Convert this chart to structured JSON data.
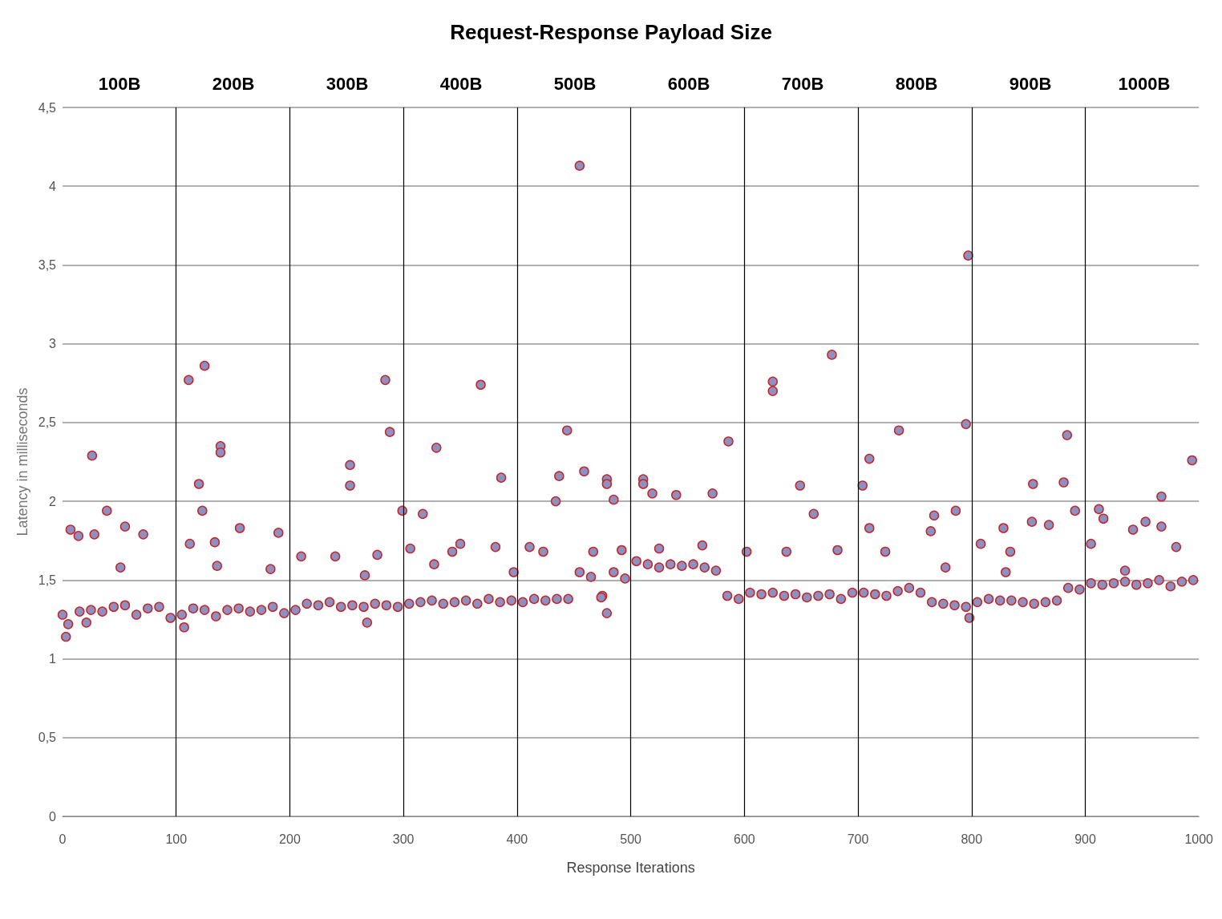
{
  "chart_data": {
    "type": "scatter",
    "title": "Request-Response Payload Size",
    "xlabel": "Response Iterations",
    "ylabel": "Latency in milliseconds",
    "x": [
      5,
      15,
      25,
      35,
      45,
      55,
      65,
      75,
      85,
      95,
      105,
      115,
      125,
      135,
      145,
      155,
      165,
      175,
      185,
      195,
      205,
      215,
      225,
      235,
      245,
      255,
      265,
      275,
      285,
      295,
      305,
      315,
      325,
      335,
      345,
      355,
      365,
      375,
      385,
      395,
      405,
      415,
      425,
      435,
      445,
      455,
      465,
      475,
      485,
      495,
      505,
      515,
      525,
      535,
      545,
      555,
      565,
      575,
      585,
      595,
      605,
      615,
      625,
      635,
      645,
      655,
      665,
      675,
      685,
      695,
      705,
      715,
      725,
      735,
      745,
      755,
      765,
      775,
      785,
      795,
      805,
      815,
      825,
      835,
      845,
      855,
      865,
      875,
      885,
      895,
      905,
      915,
      925,
      935,
      945,
      955,
      965,
      975,
      985,
      995,
      455,
      797,
      677,
      125,
      111,
      284,
      368,
      625,
      625,
      795,
      736,
      444,
      288,
      884,
      586,
      139,
      139,
      329,
      26,
      710,
      994,
      253,
      253,
      459,
      437,
      511,
      511,
      479,
      479,
      386,
      649,
      854,
      881,
      120,
      704,
      519,
      540,
      572,
      967,
      434,
      485,
      39,
      123,
      299,
      317,
      912,
      891,
      786,
      661,
      767,
      853,
      916,
      953,
      7,
      55,
      156,
      190,
      764,
      828,
      942,
      967,
      868,
      710,
      14,
      28,
      71,
      112,
      134,
      210,
      240,
      277,
      306,
      343,
      350,
      381,
      411,
      423,
      467,
      492,
      525,
      563,
      602,
      637,
      724,
      808,
      834,
      905,
      980,
      51,
      136,
      183,
      266,
      327,
      397,
      682,
      777,
      830,
      935,
      0,
      3,
      21,
      107,
      268,
      479,
      474,
      798
    ],
    "values": [
      1.22,
      1.3,
      1.31,
      1.3,
      1.33,
      1.34,
      1.28,
      1.32,
      1.33,
      1.26,
      1.28,
      1.32,
      1.31,
      1.27,
      1.31,
      1.32,
      1.3,
      1.31,
      1.33,
      1.29,
      1.31,
      1.35,
      1.34,
      1.36,
      1.33,
      1.34,
      1.33,
      1.35,
      1.34,
      1.33,
      1.35,
      1.36,
      1.37,
      1.35,
      1.36,
      1.37,
      1.35,
      1.38,
      1.36,
      1.37,
      1.36,
      1.38,
      1.37,
      1.38,
      1.38,
      1.55,
      1.52,
      1.4,
      1.55,
      1.51,
      1.62,
      1.6,
      1.58,
      1.6,
      1.59,
      1.6,
      1.58,
      1.56,
      1.4,
      1.38,
      1.42,
      1.41,
      1.42,
      1.4,
      1.41,
      1.39,
      1.4,
      1.41,
      1.38,
      1.42,
      1.42,
      1.41,
      1.4,
      1.43,
      1.45,
      1.42,
      1.36,
      1.35,
      1.34,
      1.33,
      1.36,
      1.38,
      1.37,
      1.37,
      1.36,
      1.35,
      1.36,
      1.37,
      1.45,
      1.44,
      1.48,
      1.47,
      1.48,
      1.49,
      1.47,
      1.48,
      1.5,
      1.46,
      1.49,
      1.5,
      4.13,
      3.56,
      2.93,
      2.86,
      2.77,
      2.77,
      2.74,
      2.76,
      2.7,
      2.49,
      2.45,
      2.45,
      2.44,
      2.42,
      2.38,
      2.35,
      2.31,
      2.34,
      2.29,
      2.27,
      2.26,
      2.23,
      2.1,
      2.19,
      2.16,
      2.14,
      2.11,
      2.14,
      2.11,
      2.15,
      2.1,
      2.11,
      2.12,
      2.11,
      2.1,
      2.05,
      2.04,
      2.05,
      2.03,
      2.0,
      2.01,
      1.94,
      1.94,
      1.94,
      1.92,
      1.95,
      1.94,
      1.94,
      1.92,
      1.91,
      1.87,
      1.89,
      1.87,
      1.82,
      1.84,
      1.83,
      1.8,
      1.81,
      1.83,
      1.82,
      1.84,
      1.85,
      1.83,
      1.78,
      1.79,
      1.79,
      1.73,
      1.74,
      1.65,
      1.65,
      1.66,
      1.7,
      1.68,
      1.73,
      1.71,
      1.71,
      1.68,
      1.68,
      1.69,
      1.7,
      1.72,
      1.68,
      1.68,
      1.68,
      1.73,
      1.68,
      1.73,
      1.71,
      1.58,
      1.59,
      1.57,
      1.53,
      1.6,
      1.55,
      1.69,
      1.58,
      1.55,
      1.56,
      1.28,
      1.14,
      1.23,
      1.2,
      1.23,
      1.29,
      1.39,
      1.26
    ],
    "color": "#9090c0",
    "marker": "circle",
    "grid": "y",
    "xlim": [
      0,
      1000
    ],
    "xticks": [
      0,
      100,
      200,
      300,
      400,
      500,
      600,
      700,
      800,
      900,
      1000
    ],
    "ylim": [
      0,
      4.5
    ],
    "yticks": [
      0,
      {
        "value": 0.5,
        "label": "0,5"
      },
      1,
      {
        "value": 1.5,
        "label": "1,5"
      },
      2,
      {
        "value": 2.5,
        "label": "2,5"
      },
      3,
      {
        "value": 3.5,
        "label": "3,5"
      },
      4,
      {
        "value": 4.5,
        "label": "4,5"
      }
    ],
    "ref_lines": [
      {
        "axis": "x",
        "value": 100,
        "color": "#000000"
      },
      {
        "axis": "x",
        "value": 200,
        "color": "#000000"
      },
      {
        "axis": "x",
        "value": 300,
        "color": "#000000"
      },
      {
        "axis": "x",
        "value": 400,
        "color": "#000000"
      },
      {
        "axis": "x",
        "value": 500,
        "color": "#000000"
      },
      {
        "axis": "x",
        "value": 600,
        "color": "#000000"
      },
      {
        "axis": "x",
        "value": 700,
        "color": "#000000"
      },
      {
        "axis": "x",
        "value": 800,
        "color": "#000000"
      },
      {
        "axis": "x",
        "value": 900,
        "color": "#000000"
      }
    ],
    "annotations": [
      "100B",
      "200B",
      "300B",
      "400B",
      "500B",
      "600B",
      "700B",
      "800B",
      "900B",
      "1000B"
    ]
  }
}
